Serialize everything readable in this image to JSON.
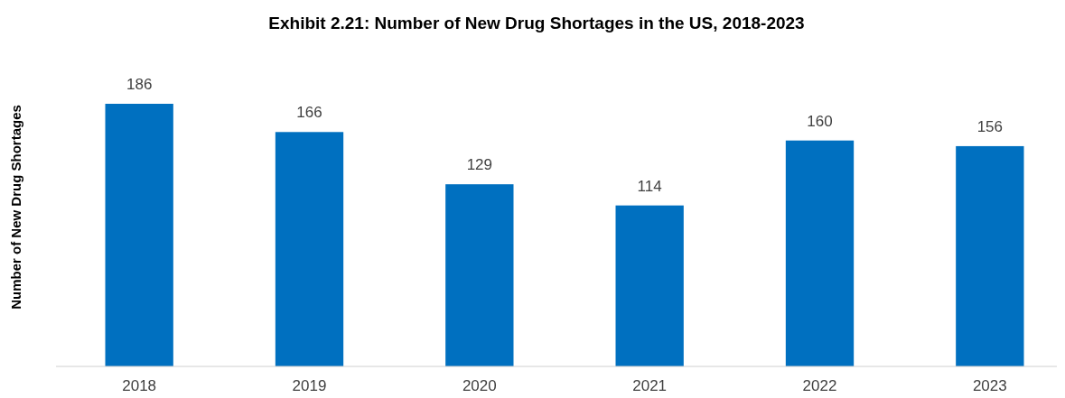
{
  "chart_data": {
    "type": "bar",
    "title": "Exhibit 2.21: Number of New Drug Shortages in the US, 2018-2023",
    "ylabel": "Number of New Drug Shortages",
    "categories": [
      "2018",
      "2019",
      "2020",
      "2021",
      "2022",
      "2023"
    ],
    "values": [
      186,
      166,
      129,
      114,
      160,
      156
    ],
    "color": "#0070c0",
    "data_labels": true
  }
}
